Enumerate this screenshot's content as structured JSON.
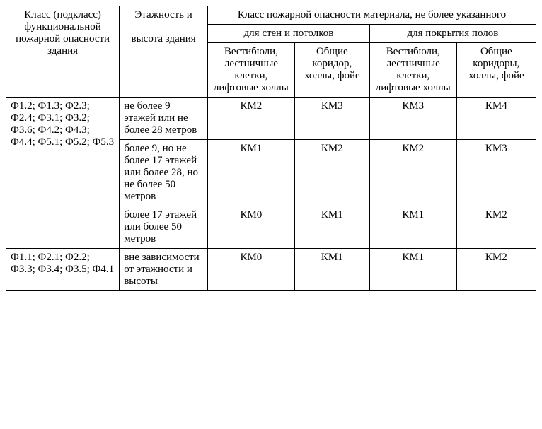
{
  "headers": {
    "col1": "Класс (подкласс) функциональной пожарной опасности здания",
    "col2_top": "Этажность и",
    "col2_bottom": "высота здания",
    "material_header": "Класс пожарной опасности материала, не более указанного",
    "walls_ceilings": "для стен и потолков",
    "floor_coverings": "для покрытия полов",
    "vestibules": "Вестибюли, лестничные клетки, лифтовые холлы",
    "common_corridor": "Общие коридор, холлы, фойе",
    "common_corridors": "Общие коридоры, холлы, фойе"
  },
  "rows": [
    {
      "class_group": "Ф1.2; Ф1.3; Ф2.3; Ф2.4; Ф3.1; Ф3.2; Ф3.6; Ф4.2; Ф4.3; Ф4.4; Ф5.1; Ф5.2; Ф5.3",
      "sub": [
        {
          "floors": "не более 9 этажей или не более 28 метров",
          "v1": "КМ2",
          "v2": "КМ3",
          "v3": "КМ3",
          "v4": "КМ4"
        },
        {
          "floors": "более 9, но не более 17 этажей или более 28, но не более 50 метров",
          "v1": "КМ1",
          "v2": "КМ2",
          "v3": "КМ2",
          "v4": "КМ3"
        },
        {
          "floors": "более 17 этажей или более 50 метров",
          "v1": "КМ0",
          "v2": "КМ1",
          "v3": "КМ1",
          "v4": "КМ2"
        }
      ]
    },
    {
      "class_group": "Ф1.1; Ф2.1; Ф2.2; Ф3.3; Ф3.4; Ф3.5; Ф4.1",
      "sub": [
        {
          "floors": "вне зависимости от этажности и высоты",
          "v1": "КМ0",
          "v2": "КМ1",
          "v3": "КМ1",
          "v4": "КМ2"
        }
      ]
    }
  ]
}
